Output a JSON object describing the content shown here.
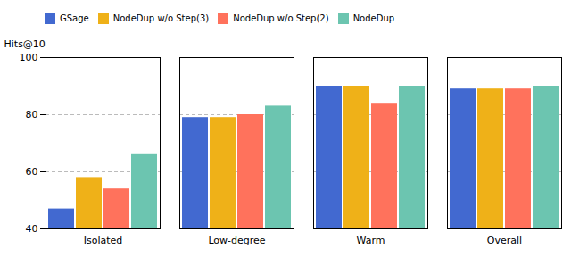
{
  "chart_data": {
    "type": "bar",
    "categories": [
      "Isolated",
      "Low-degree",
      "Warm",
      "Overall"
    ],
    "series": [
      {
        "name": "GSage",
        "values": [
          47,
          79,
          90,
          89
        ]
      },
      {
        "name": "NodeDup w/o Step(3)",
        "values": [
          58,
          79,
          90,
          89
        ]
      },
      {
        "name": "NodeDup w/o Step(2)",
        "values": [
          54,
          80,
          84,
          89
        ]
      },
      {
        "name": "NodeDup",
        "values": [
          66,
          83,
          90,
          90
        ]
      }
    ],
    "ylabel": "Hits@10",
    "ylim": [
      40,
      100
    ],
    "yticks": [
      40,
      60,
      80,
      100
    ],
    "grid": true,
    "legend": "upper left"
  }
}
